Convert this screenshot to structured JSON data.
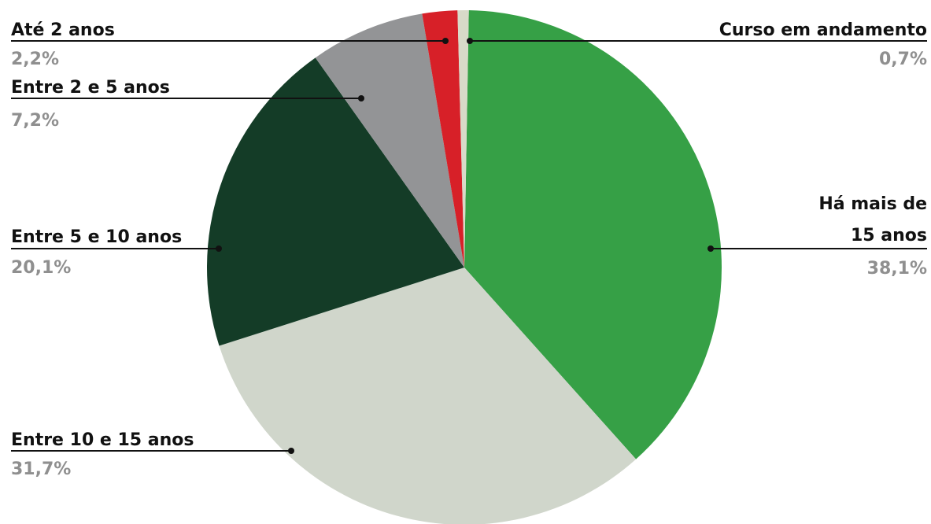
{
  "chart_data": {
    "type": "pie",
    "start_angle_deg": 1,
    "slices": [
      {
        "name_lines": [
          "Há mais de",
          "15 anos"
        ],
        "value_label": "38,1%",
        "value": 38.1,
        "color": "#36a046"
      },
      {
        "name_lines": [
          "Entre 10 e 15 anos"
        ],
        "value_label": "31,7%",
        "value": 31.7,
        "color": "#d0d6cb"
      },
      {
        "name_lines": [
          "Entre 5 e 10 anos"
        ],
        "value_label": "20,1%",
        "value": 20.1,
        "color": "#143c27"
      },
      {
        "name_lines": [
          "Entre 2 e 5 anos"
        ],
        "value_label": "7,2%",
        "value": 7.2,
        "color": "#939496"
      },
      {
        "name_lines": [
          "Até 2 anos"
        ],
        "value_label": "2,2%",
        "value": 2.2,
        "color": "#d72028"
      },
      {
        "name_lines": [
          "Curso em andamento"
        ],
        "value_label": "0,7%",
        "value": 0.7,
        "color": "#d8dac8"
      }
    ]
  }
}
